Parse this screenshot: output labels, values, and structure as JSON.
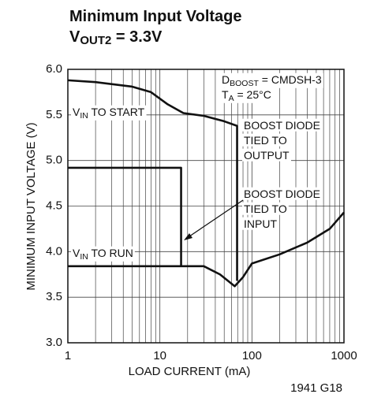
{
  "chart_data": {
    "type": "line",
    "title": [
      {
        "text": "Minimum Input Voltage"
      }
    ],
    "subtitle": [
      {
        "text": "V"
      },
      {
        "text": "OUT2",
        "sub": true
      },
      {
        "text": " = 3.3V"
      }
    ],
    "xlabel": "LOAD CURRENT (mA)",
    "ylabel": "MINIMUM INPUT VOLTAGE (V)",
    "xlog": true,
    "xlim": [
      1,
      1000
    ],
    "ylim": [
      3,
      6
    ],
    "xticks": [
      1,
      10,
      100,
      1000
    ],
    "xgrid_minor": [
      2,
      3,
      4,
      5,
      6,
      7,
      8,
      9,
      20,
      30,
      40,
      50,
      60,
      70,
      80,
      90,
      200,
      300,
      400,
      500,
      600,
      700,
      800,
      900
    ],
    "yticks": [
      {
        "value": 3,
        "label": "3.0"
      },
      3.5,
      {
        "value": 4,
        "label": "4.0"
      },
      4.5,
      {
        "value": 5,
        "label": "5.0"
      },
      5.5,
      {
        "value": 6,
        "label": "6.0"
      }
    ],
    "grid": true,
    "series": [
      {
        "color": "#111111",
        "x": [
          1,
          2,
          5,
          8,
          12,
          18,
          30,
          50,
          69,
          69
        ],
        "values": [
          5.88,
          5.86,
          5.81,
          5.75,
          5.62,
          5.52,
          5.49,
          5.43,
          5.38,
          3.68
        ]
      },
      {
        "color": "#111111",
        "x": [
          1,
          17,
          17
        ],
        "values": [
          4.92,
          4.92,
          3.84
        ]
      },
      {
        "color": "#111111",
        "x": [
          1,
          10,
          30,
          45,
          65,
          80,
          100,
          200,
          400,
          700,
          1000
        ],
        "values": [
          3.84,
          3.84,
          3.84,
          3.75,
          3.62,
          3.72,
          3.87,
          3.97,
          4.1,
          4.25,
          4.43
        ]
      }
    ],
    "annotations": [
      {
        "lines": [
          [
            {
              "text": "D"
            },
            {
              "text": "BOOST",
              "sub": true
            },
            {
              "text": " = CMDSH-3"
            }
          ],
          [
            {
              "text": "T"
            },
            {
              "text": "A",
              "sub": true
            },
            {
              "text": " = 25°C"
            }
          ]
        ]
      },
      {
        "lines": [
          [
            {
              "text": "V"
            },
            {
              "text": "IN",
              "sub": true
            },
            {
              "text": " TO START"
            }
          ]
        ]
      },
      {
        "lines": [
          [
            {
              "text": "BOOST DIODE"
            }
          ],
          [
            {
              "text": "TIED TO"
            }
          ],
          [
            {
              "text": "OUTPUT"
            }
          ]
        ]
      },
      {
        "lines": [
          [
            {
              "text": "BOOST DIODE"
            }
          ],
          [
            {
              "text": "TIED TO"
            }
          ],
          [
            {
              "text": "INPUT"
            }
          ]
        ]
      },
      {
        "lines": [
          [
            {
              "text": "V"
            },
            {
              "text": "IN",
              "sub": true
            },
            {
              "text": " TO RUN"
            }
          ]
        ]
      },
      {
        "lines": [
          [
            {
              "text": "1941 G18"
            }
          ]
        ]
      }
    ]
  }
}
